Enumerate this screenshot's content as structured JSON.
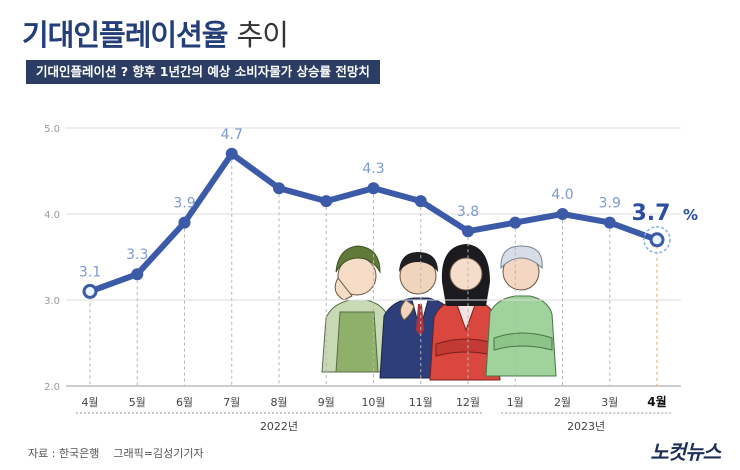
{
  "header": {
    "title_main": "기대인플레이션율",
    "title_rest": "추이",
    "subtitle": "기대인플레이션 ? 향후 1년간의 예상 소비자물가 상승률 전망치"
  },
  "footer": {
    "source": "자료 : 한국은행",
    "graphic": "그래픽=김성기기자"
  },
  "logo": {
    "text": "노컷뉴스"
  },
  "chart_data": {
    "type": "line",
    "title": "기대인플레이션율 추이",
    "categories": [
      "4월",
      "5월",
      "6월",
      "7월",
      "8월",
      "9월",
      "10월",
      "11월",
      "12월",
      "1월",
      "2월",
      "3월",
      "4월"
    ],
    "series": [
      {
        "values": [
          3.1,
          3.3,
          3.9,
          4.7,
          4.3,
          4.15,
          4.3,
          4.15,
          3.8,
          3.9,
          4.0,
          3.9,
          3.7
        ]
      }
    ],
    "data_labels": [
      "3.1",
      "3.3",
      "3.9",
      "4.7",
      "",
      "",
      "4.3",
      "",
      "3.8",
      "",
      "4.0",
      "3.9",
      "3.7"
    ],
    "last_label_unit": "%",
    "y_ticks": [
      "2.0",
      "3.0",
      "4.0",
      "5.0"
    ],
    "ylim": [
      2.0,
      5.0
    ],
    "groups": [
      {
        "label": "2022년",
        "from": 0,
        "to": 8
      },
      {
        "label": "2023년",
        "from": 9,
        "to": 12
      }
    ],
    "grid": true,
    "colors": {
      "line": "#3b5aa8",
      "label": "#7d9ad0",
      "highlight": "#2c4da0",
      "marker_fill": "#e8f5ff",
      "grid": "#dddddd",
      "last_guide": "#f0a35c"
    }
  }
}
